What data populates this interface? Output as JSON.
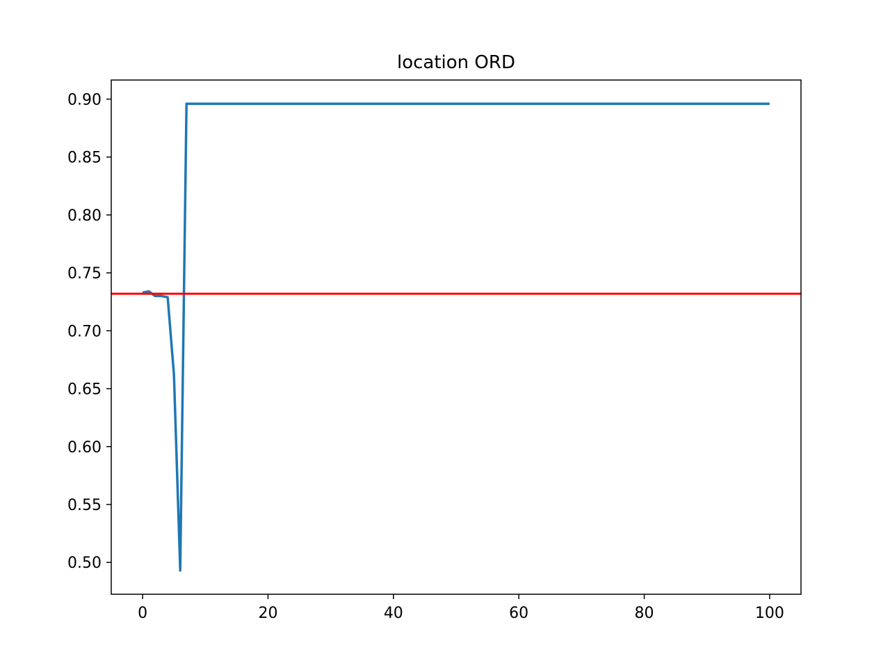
{
  "chart_data": {
    "type": "line",
    "title": "location ORD",
    "xlabel": "",
    "ylabel": "",
    "xlim": [
      -5,
      105
    ],
    "ylim": [
      0.4725,
      0.9165
    ],
    "x_ticks": [
      0,
      20,
      40,
      60,
      80,
      100
    ],
    "y_ticks": [
      0.5,
      0.55,
      0.6,
      0.65,
      0.7,
      0.75,
      0.8,
      0.85,
      0.9
    ],
    "grid": false,
    "legend": "none",
    "series": [
      {
        "color": "#1f77b4",
        "x": [
          0,
          1,
          2,
          3,
          4,
          5,
          6,
          7,
          8,
          9,
          10,
          15,
          20,
          25,
          30,
          35,
          40,
          45,
          50,
          55,
          60,
          65,
          70,
          75,
          80,
          85,
          90,
          95,
          100
        ],
        "values": [
          0.733,
          0.734,
          0.73,
          0.73,
          0.729,
          0.662,
          0.493,
          0.896,
          0.896,
          0.896,
          0.896,
          0.896,
          0.896,
          0.896,
          0.896,
          0.896,
          0.896,
          0.896,
          0.896,
          0.896,
          0.896,
          0.896,
          0.896,
          0.896,
          0.896,
          0.896,
          0.896,
          0.896,
          0.896
        ]
      }
    ],
    "hlines": [
      {
        "y": 0.732,
        "color": "#ff0000"
      }
    ]
  }
}
